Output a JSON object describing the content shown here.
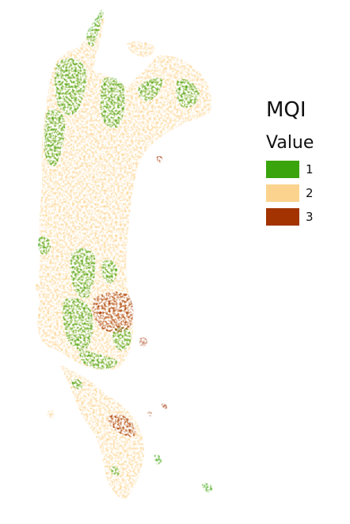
{
  "legend": {
    "title": "MQI",
    "subtitle": "Value",
    "items": [
      {
        "label": "1",
        "color": "#3aa40c"
      },
      {
        "label": "2",
        "color": "#fcd38e"
      },
      {
        "label": "3",
        "color": "#a33300"
      }
    ]
  },
  "colors": {
    "class1": "#3aa40c",
    "class2": "#fcd38e",
    "class3": "#a33300",
    "background": "#ffffff"
  }
}
